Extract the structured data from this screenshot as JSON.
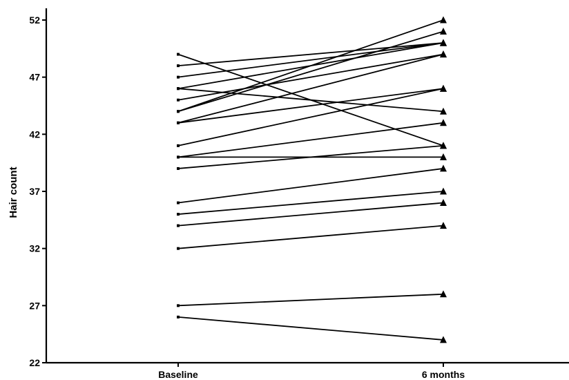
{
  "chart_data": {
    "type": "line",
    "title": "",
    "xlabel": "",
    "ylabel": "Hair count",
    "categories": [
      "Baseline",
      "6 months"
    ],
    "ylim": [
      22,
      53
    ],
    "yticks": [
      22,
      27,
      32,
      37,
      42,
      47,
      52
    ],
    "grid": false,
    "legend": "none",
    "series": [
      {
        "values": [
          49,
          41
        ]
      },
      {
        "values": [
          48,
          50
        ]
      },
      {
        "values": [
          47,
          50
        ]
      },
      {
        "values": [
          46,
          50
        ]
      },
      {
        "values": [
          46,
          44
        ]
      },
      {
        "values": [
          45,
          49
        ]
      },
      {
        "values": [
          44,
          52
        ]
      },
      {
        "values": [
          44,
          51
        ]
      },
      {
        "values": [
          43,
          49
        ]
      },
      {
        "values": [
          43,
          46
        ]
      },
      {
        "values": [
          41,
          46
        ]
      },
      {
        "values": [
          40,
          43
        ]
      },
      {
        "values": [
          40,
          40
        ]
      },
      {
        "values": [
          39,
          41
        ]
      },
      {
        "values": [
          36,
          39
        ]
      },
      {
        "values": [
          35,
          37
        ]
      },
      {
        "values": [
          34,
          36
        ]
      },
      {
        "values": [
          32,
          34
        ]
      },
      {
        "values": [
          27,
          28
        ]
      },
      {
        "values": [
          26,
          24
        ]
      }
    ],
    "marker_baseline": "square",
    "marker_followup": "triangle",
    "line_color": "#000000"
  }
}
